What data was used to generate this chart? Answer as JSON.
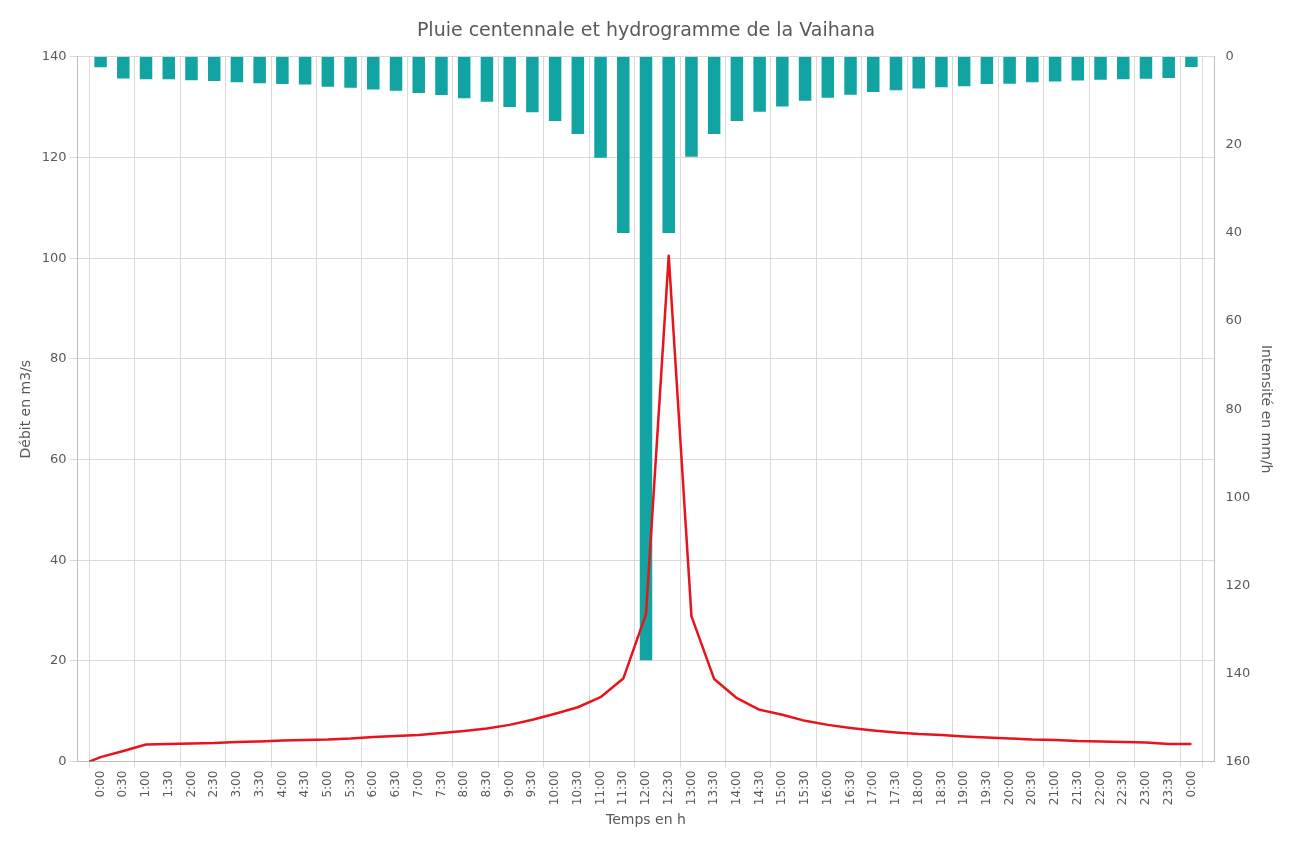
{
  "chart_data": {
    "type": "bar",
    "title": "Pluie centennale et hydrogramme de la Vaihana",
    "xlabel": "Temps en h",
    "ylabel": "Débit en m3/s",
    "y2label": "Intensité en mm/h",
    "x": [
      0,
      0.5,
      1,
      1.5,
      2,
      2.5,
      3,
      3.5,
      4,
      4.5,
      5,
      5.5,
      6,
      6.5,
      7,
      7.5,
      8,
      8.5,
      9,
      9.5,
      10,
      10.5,
      11,
      11.5,
      12,
      12.5,
      13,
      13.5,
      14,
      14.5,
      15,
      15.5,
      16,
      16.5,
      17,
      17.5,
      18,
      18.5,
      19,
      19.5,
      20,
      20.5,
      21,
      21.5,
      22,
      22.5,
      23,
      23.5,
      24
    ],
    "series": [
      {
        "axis": "y2",
        "color": "#12a3a3",
        "values": [
          2.4,
          4.9,
          5.1,
          5.1,
          5.3,
          5.5,
          5.8,
          6.0,
          6.2,
          6.3,
          6.8,
          7.0,
          7.4,
          7.7,
          8.2,
          8.7,
          9.4,
          10.2,
          11.4,
          12.6,
          14.6,
          17.5,
          22.9,
          40,
          137,
          40,
          22.7,
          17.5,
          14.6,
          12.5,
          11.3,
          10.0,
          9.3,
          8.6,
          8.0,
          7.6,
          7.2,
          6.9,
          6.7,
          6.2,
          6.1,
          5.8,
          5.6,
          5.4,
          5.2,
          5.1,
          5.0,
          4.8,
          2.3
        ]
      },
      {
        "type": "line",
        "color": "#e8141c",
        "x": [
          -0.25,
          0,
          0.5,
          1,
          1.5,
          2,
          2.5,
          3,
          3.5,
          4,
          4.5,
          5,
          5.5,
          6,
          6.5,
          7,
          7.5,
          8,
          8.5,
          9,
          9.5,
          10,
          10.5,
          11,
          11.5,
          12,
          12.5,
          13,
          13.5,
          14,
          14.5,
          15,
          15.5,
          16,
          16.5,
          17,
          17.5,
          18,
          18.5,
          19,
          19.5,
          20,
          20.5,
          21,
          21.5,
          22,
          22.5,
          23,
          23.5,
          24
        ],
        "values": [
          0,
          0.9,
          2.1,
          3.4,
          3.5,
          3.6,
          3.7,
          3.9,
          4.0,
          4.2,
          4.3,
          4.4,
          4.6,
          4.9,
          5.1,
          5.3,
          5.7,
          6.1,
          6.6,
          7.3,
          8.3,
          9.5,
          10.8,
          12.8,
          16.5,
          29.3,
          100.5,
          28.9,
          16.4,
          12.6,
          10.3,
          9.3,
          8.1,
          7.3,
          6.7,
          6.2,
          5.8,
          5.5,
          5.3,
          5.0,
          4.8,
          4.6,
          4.4,
          4.3,
          4.1,
          4.0,
          3.9,
          3.8,
          3.5,
          3.5
        ]
      }
    ],
    "xlim": [
      -0.25,
      24.25
    ],
    "xticks": [
      {
        "value": 0,
        "label": "0:00"
      },
      {
        "value": 0.5,
        "label": "0:30"
      },
      {
        "value": 1,
        "label": "1:00"
      },
      {
        "value": 1.5,
        "label": "1:30"
      },
      {
        "value": 2,
        "label": "2:00"
      },
      {
        "value": 2.5,
        "label": "2:30"
      },
      {
        "value": 3,
        "label": "3:00"
      },
      {
        "value": 3.5,
        "label": "3:30"
      },
      {
        "value": 4,
        "label": "4:00"
      },
      {
        "value": 4.5,
        "label": "4:30"
      },
      {
        "value": 5,
        "label": "5:00"
      },
      {
        "value": 5.5,
        "label": "5:30"
      },
      {
        "value": 6,
        "label": "6:00"
      },
      {
        "value": 6.5,
        "label": "6:30"
      },
      {
        "value": 7,
        "label": "7:00"
      },
      {
        "value": 7.5,
        "label": "7:30"
      },
      {
        "value": 8,
        "label": "8:00"
      },
      {
        "value": 8.5,
        "label": "8:30"
      },
      {
        "value": 9,
        "label": "9:00"
      },
      {
        "value": 9.5,
        "label": "9:30"
      },
      {
        "value": 10,
        "label": "10:00"
      },
      {
        "value": 10.5,
        "label": "10:30"
      },
      {
        "value": 11,
        "label": "11:00"
      },
      {
        "value": 11.5,
        "label": "11:30"
      },
      {
        "value": 12,
        "label": "12:00"
      },
      {
        "value": 12.5,
        "label": "12:30"
      },
      {
        "value": 13,
        "label": "13:00"
      },
      {
        "value": 13.5,
        "label": "13:30"
      },
      {
        "value": 14,
        "label": "14:00"
      },
      {
        "value": 14.5,
        "label": "14:30"
      },
      {
        "value": 15,
        "label": "15:00"
      },
      {
        "value": 15.5,
        "label": "15:30"
      },
      {
        "value": 16,
        "label": "16:00"
      },
      {
        "value": 16.5,
        "label": "16:30"
      },
      {
        "value": 17,
        "label": "17:00"
      },
      {
        "value": 17.5,
        "label": "17:30"
      },
      {
        "value": 18,
        "label": "18:00"
      },
      {
        "value": 18.5,
        "label": "18:30"
      },
      {
        "value": 19,
        "label": "19:00"
      },
      {
        "value": 19.5,
        "label": "19:30"
      },
      {
        "value": 20,
        "label": "20:00"
      },
      {
        "value": 20.5,
        "label": "20:30"
      },
      {
        "value": 21,
        "label": "21:00"
      },
      {
        "value": 21.5,
        "label": "21:30"
      },
      {
        "value": 22,
        "label": "22:00"
      },
      {
        "value": 22.5,
        "label": "22:30"
      },
      {
        "value": 23,
        "label": "23:00"
      },
      {
        "value": 23.5,
        "label": "23:30"
      },
      {
        "value": 24,
        "label": "0:00"
      }
    ],
    "ylim": [
      0,
      140
    ],
    "yticks": [
      0,
      20,
      40,
      60,
      80,
      100,
      120,
      140
    ],
    "y2lim": [
      160,
      0
    ],
    "y2ticks": [
      0,
      20,
      40,
      60,
      80,
      100,
      120,
      140,
      160
    ],
    "grid": true,
    "legend": false,
    "marker": "none",
    "line_style": "solid"
  }
}
